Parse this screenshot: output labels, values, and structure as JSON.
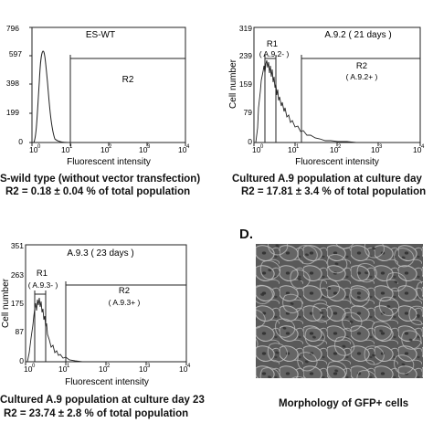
{
  "panel_top_left": {
    "label": "ES-WT",
    "gate_r2": "R2",
    "y_ticks": [
      "796",
      "597",
      "398",
      "199",
      "0"
    ],
    "x_ticks": [
      {
        "base": "10",
        "exp": "0"
      },
      {
        "base": "10",
        "exp": "1"
      },
      {
        "base": "10",
        "exp": "2"
      },
      {
        "base": "10",
        "exp": "3"
      },
      {
        "base": "10",
        "exp": "4"
      }
    ],
    "x_label": "Fluorescent intensity",
    "caption_line1": "S-wild type (without vector transfection)",
    "caption_line2": "R2 = 0.18 ± 0.04 % of total population"
  },
  "panel_top_right": {
    "label": "A.9.2  ( 21 days )",
    "gate_r1": "R1",
    "gate_r1_sub": "( A.9.2- )",
    "gate_r2": "R2",
    "gate_r2_sub": "( A.9.2+ )",
    "y_label": "Cell number",
    "y_ticks": [
      "319",
      "239",
      "159",
      "79",
      "0"
    ],
    "x_ticks": [
      {
        "base": "10",
        "exp": "0"
      },
      {
        "base": "10",
        "exp": "1"
      },
      {
        "base": "10",
        "exp": "2"
      },
      {
        "base": "10",
        "exp": "3"
      },
      {
        "base": "10",
        "exp": "4"
      }
    ],
    "x_label": "Fluorescent intensity",
    "caption_line1": "Cultured A.9 population at culture day",
    "caption_line2": "R2 = 17.81 ± 3.4 % of total population"
  },
  "panel_bottom_left": {
    "label": "A.9.3  ( 23 days )",
    "gate_r1": "R1",
    "gate_r1_sub": "( A.9.3- )",
    "gate_r2": "R2",
    "gate_r2_sub": "( A.9.3+ )",
    "y_label": "Cell number",
    "y_ticks": [
      "351",
      "263",
      "175",
      "87",
      "0"
    ],
    "x_ticks": [
      {
        "base": "10",
        "exp": "0"
      },
      {
        "base": "10",
        "exp": "1"
      },
      {
        "base": "10",
        "exp": "2"
      },
      {
        "base": "10",
        "exp": "3"
      },
      {
        "base": "10",
        "exp": "4"
      }
    ],
    "x_label": "Fluorescent intensity",
    "caption_line1": "Cultured A.9 population at culture day 23",
    "caption_line2": "R2 = 23.74 ± 2.8 % of total population"
  },
  "panel_d": {
    "letter": "D.",
    "caption": "Morphology of GFP+ cells"
  },
  "colors": {
    "line": "#222222",
    "text": "#111111",
    "photo_bg": "#5d5d5d"
  }
}
